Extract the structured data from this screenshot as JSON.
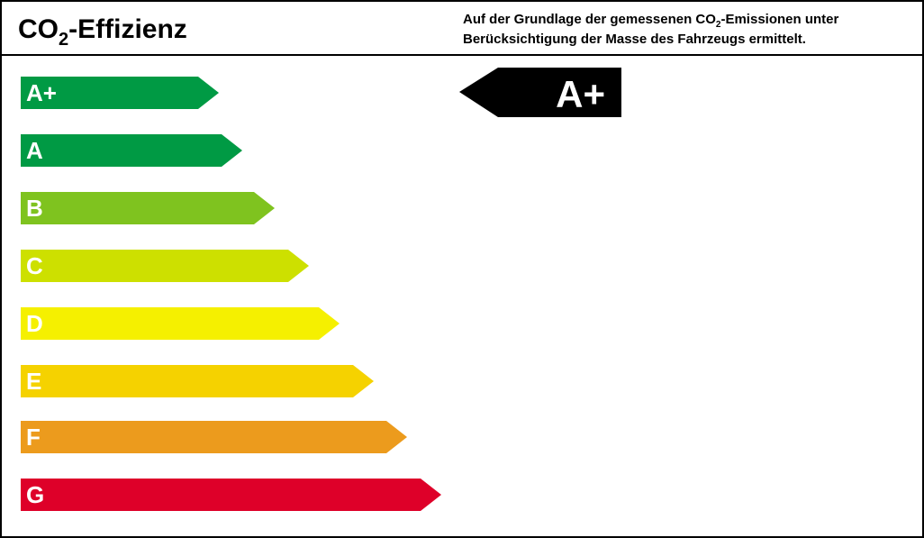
{
  "header": {
    "title": {
      "main": "CO",
      "sub": "2",
      "rest": "-Effizienz"
    },
    "description": {
      "line1_main": "Auf der Grundlage der gemessenen CO",
      "line1_sub": "2",
      "line1_rest": "-Emissionen unter",
      "line2": "Berücksichtigung der Masse des Fahrzeugs ermittelt."
    }
  },
  "classes": [
    {
      "label": "A+",
      "color": "#009a44"
    },
    {
      "label": "A",
      "color": "#009a44"
    },
    {
      "label": "B",
      "color": "#7fc31f"
    },
    {
      "label": "C",
      "color": "#cde000"
    },
    {
      "label": "D",
      "color": "#f5f000"
    },
    {
      "label": "E",
      "color": "#f5d200"
    },
    {
      "label": "F",
      "color": "#ec9b1d"
    },
    {
      "label": "G",
      "color": "#de0029"
    }
  ],
  "rating": {
    "label": "A+",
    "color": "#000000"
  }
}
